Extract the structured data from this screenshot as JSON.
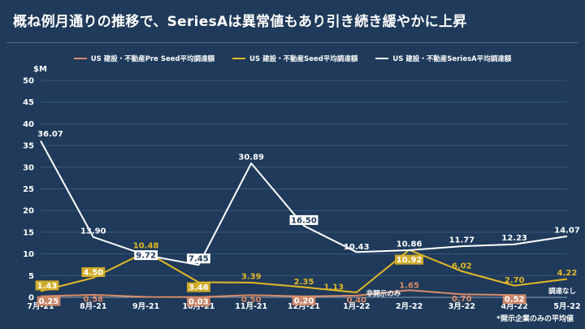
{
  "title": "概ね例月通りの推移で、SeriesAは異常値もあり引き続き緩やかに上昇",
  "note": "*開示企業のみの平均値",
  "chart_data": {
    "type": "line",
    "unit": "$M",
    "categories": [
      "7月-21",
      "8月-21",
      "9月-21",
      "10月-21",
      "11月-21",
      "12月-21",
      "1月-22",
      "2月-22",
      "3月-22",
      "4月-22",
      "5月-22"
    ],
    "ylim": [
      0,
      50
    ],
    "yticks": [
      0,
      5,
      10,
      15,
      20,
      25,
      30,
      35,
      40,
      45,
      50
    ],
    "grid": true,
    "legend_position": "top",
    "series": [
      {
        "name": "US 建設・不動産Pre Seed平均調達額",
        "color": "#d98c69",
        "values": [
          0.25,
          0.58,
          0.1,
          0.03,
          0.5,
          0.2,
          0.4,
          1.65,
          0.7,
          0.52,
          null
        ],
        "labels": [
          "0.25",
          "0.58",
          "",
          "0.03",
          "0.50",
          "0.20",
          "0.40",
          "1.65",
          "0.70",
          "0.52",
          ""
        ]
      },
      {
        "name": "US 建設・不動産Seed平均調達額",
        "color": "#e2b825",
        "values": [
          1.43,
          4.5,
          10.48,
          3.46,
          3.39,
          2.35,
          1.13,
          10.92,
          6.02,
          2.7,
          4.22
        ],
        "labels": [
          "1.43",
          "4.50",
          "10.48",
          "3.46",
          "3.39",
          "2.35",
          "1.13",
          "10.92",
          "6.02",
          "2.70",
          "4.22"
        ]
      },
      {
        "name": "US 建設・不動産SeriesA平均調達額",
        "color": "#ffffff",
        "values": [
          36.07,
          13.9,
          9.72,
          7.45,
          30.89,
          16.5,
          10.43,
          10.86,
          11.77,
          12.23,
          14.07
        ],
        "labels": [
          "36.07",
          "13.90",
          "9.72",
          "7.45",
          "30.89",
          "16.50",
          "10.43",
          "10.86",
          "11.77",
          "12.23",
          "14.07"
        ]
      }
    ],
    "annotations": [
      "非開示のみ",
      "調達なし"
    ]
  }
}
